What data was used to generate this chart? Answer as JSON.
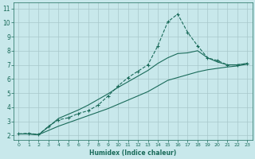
{
  "xlabel": "Humidex (Indice chaleur)",
  "bg_color": "#c8e8eb",
  "line_color": "#1a6b5a",
  "grid_color": "#a8c8cb",
  "xlim": [
    -0.5,
    23.5
  ],
  "ylim": [
    1.7,
    11.4
  ],
  "xticks": [
    0,
    1,
    2,
    3,
    4,
    5,
    6,
    7,
    8,
    9,
    10,
    11,
    12,
    13,
    14,
    15,
    16,
    17,
    18,
    19,
    20,
    21,
    22,
    23
  ],
  "yticks": [
    2,
    3,
    4,
    5,
    6,
    7,
    8,
    9,
    10,
    11
  ],
  "line1_x": [
    0,
    1,
    2,
    3,
    4,
    5,
    6,
    7,
    8,
    9,
    10,
    11,
    12,
    13,
    14,
    15,
    16,
    17,
    18,
    19,
    20,
    21,
    22,
    23
  ],
  "line1_y": [
    2.1,
    2.15,
    2.05,
    2.65,
    3.1,
    3.25,
    3.55,
    3.75,
    4.15,
    4.8,
    5.5,
    6.1,
    6.55,
    7.0,
    8.35,
    10.05,
    10.6,
    9.3,
    8.35,
    7.5,
    7.3,
    7.0,
    7.0,
    7.1
  ],
  "line2_x": [
    0,
    1,
    2,
    3,
    4,
    5,
    6,
    7,
    8,
    9,
    10,
    11,
    12,
    13,
    14,
    15,
    16,
    17,
    18,
    19,
    20,
    21,
    22,
    23
  ],
  "line2_y": [
    2.1,
    2.1,
    2.05,
    2.35,
    2.65,
    2.9,
    3.15,
    3.4,
    3.65,
    3.9,
    4.2,
    4.5,
    4.8,
    5.1,
    5.5,
    5.9,
    6.1,
    6.3,
    6.5,
    6.65,
    6.75,
    6.85,
    6.92,
    7.05
  ],
  "line3_x": [
    0,
    1,
    2,
    3,
    4,
    5,
    6,
    7,
    8,
    9,
    10,
    11,
    12,
    13,
    14,
    15,
    16,
    17,
    18,
    19,
    20,
    21,
    22,
    23
  ],
  "line3_y": [
    2.1,
    2.1,
    2.05,
    2.6,
    3.2,
    3.5,
    3.8,
    4.15,
    4.55,
    4.95,
    5.4,
    5.8,
    6.2,
    6.6,
    7.1,
    7.5,
    7.8,
    7.85,
    8.0,
    7.5,
    7.2,
    7.0,
    7.0,
    7.1
  ]
}
